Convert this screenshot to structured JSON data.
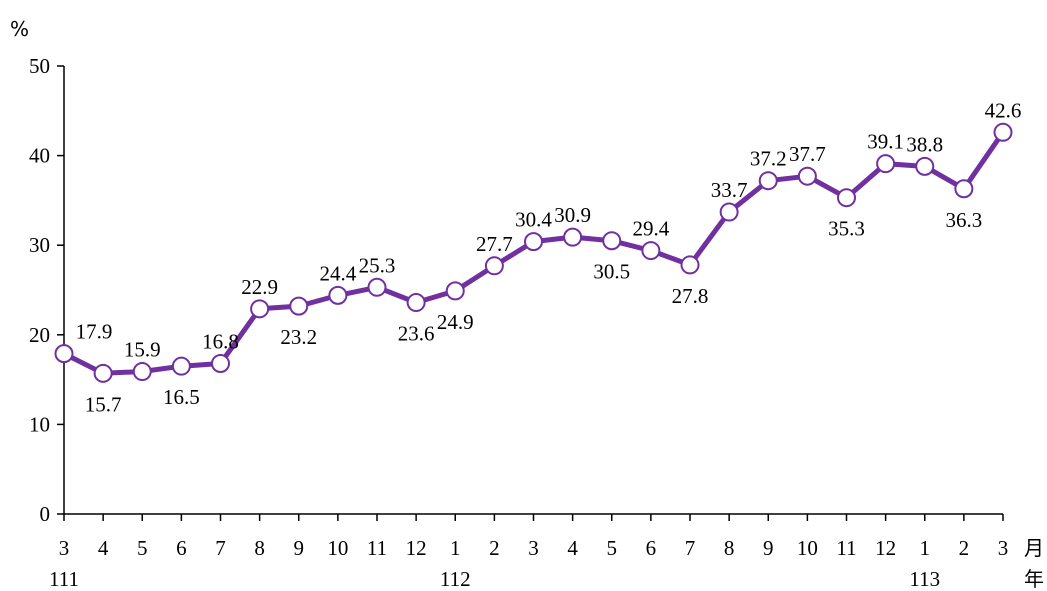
{
  "chart_data": {
    "type": "line",
    "ylabel": "%",
    "ylim": [
      0,
      50
    ],
    "yticks": [
      0,
      10,
      20,
      30,
      40,
      50
    ],
    "grid": false,
    "legend": "none",
    "categories": [
      "3",
      "4",
      "5",
      "6",
      "7",
      "8",
      "9",
      "10",
      "11",
      "12",
      "1",
      "2",
      "3",
      "4",
      "5",
      "6",
      "7",
      "8",
      "9",
      "10",
      "11",
      "12",
      "1",
      "2",
      "3"
    ],
    "year_labels": [
      {
        "index": 0,
        "label": "111"
      },
      {
        "index": 10,
        "label": "112"
      },
      {
        "index": 22,
        "label": "113"
      }
    ],
    "x_unit_month": "月",
    "x_unit_year": "年",
    "series": [
      {
        "values": [
          17.9,
          15.7,
          15.9,
          16.5,
          16.8,
          22.9,
          23.2,
          24.4,
          25.3,
          23.6,
          24.9,
          27.7,
          30.4,
          30.9,
          30.5,
          29.4,
          27.8,
          33.7,
          37.2,
          37.7,
          35.3,
          39.1,
          38.8,
          36.3,
          42.6
        ],
        "label_positions": [
          "above",
          "below",
          "above",
          "below",
          "above",
          "above",
          "below",
          "above",
          "above",
          "below",
          "below",
          "above",
          "above",
          "above",
          "below",
          "above",
          "below",
          "above",
          "above",
          "above",
          "below",
          "above",
          "above",
          "below",
          "above"
        ],
        "color": "#7030A0"
      }
    ]
  }
}
